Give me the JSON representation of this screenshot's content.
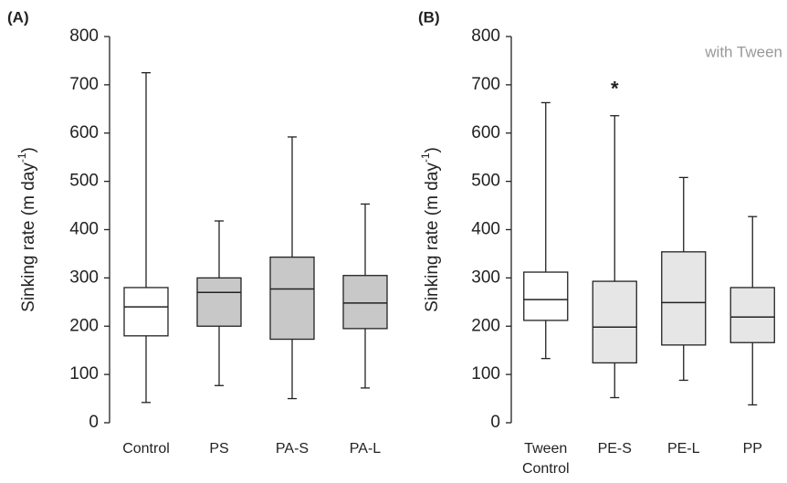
{
  "chart_data": [
    {
      "type": "box",
      "panel_label": "(A)",
      "ylabel": "Sinking rate (m day",
      "ylabel_sup": "-1",
      "ylabel_end": ")",
      "categories": [
        "Control",
        "PS",
        "PA-S",
        "PA-L"
      ],
      "colors": [
        "#ffffff",
        "#c8c8c8",
        "#c8c8c8",
        "#c8c8c8"
      ],
      "min": [
        42,
        77,
        50,
        72
      ],
      "q1": [
        180,
        200,
        173,
        195
      ],
      "median": [
        240,
        270,
        277,
        248
      ],
      "q3": [
        280,
        300,
        343,
        305
      ],
      "max": [
        725,
        418,
        592,
        453
      ],
      "ylim": [
        0,
        800
      ],
      "yticks": [
        0,
        100,
        200,
        300,
        400,
        500,
        600,
        700,
        800
      ]
    },
    {
      "type": "box",
      "panel_label": "(B)",
      "ylabel": "Sinking rate (m day",
      "ylabel_sup": "-1",
      "ylabel_end": ")",
      "annotation": "with Tween",
      "star": "*",
      "star_value": 700,
      "categories": [
        "Tween Control",
        "PE-S",
        "PE-L",
        "PP"
      ],
      "colors": [
        "#ffffff",
        "#e6e6e6",
        "#e6e6e6",
        "#e6e6e6"
      ],
      "min": [
        133,
        52,
        88,
        37
      ],
      "q1": [
        212,
        124,
        161,
        166
      ],
      "median": [
        255,
        198,
        249,
        219
      ],
      "q3": [
        312,
        293,
        354,
        280
      ],
      "max": [
        663,
        636,
        508,
        427
      ],
      "ylim": [
        0,
        800
      ],
      "yticks": [
        0,
        100,
        200,
        300,
        400,
        500,
        600,
        700,
        800
      ]
    }
  ]
}
